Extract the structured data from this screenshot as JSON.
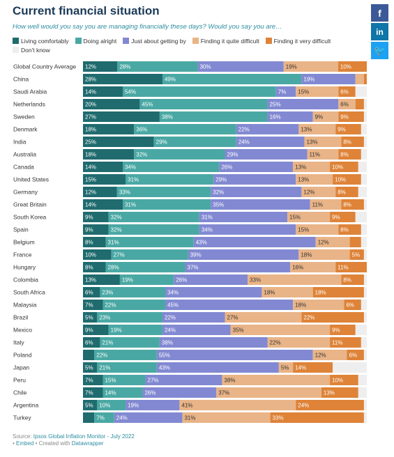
{
  "title": "Current financial situation",
  "subtitle": "How well would you say you are managing financially these days? Would you say you are…",
  "social": {
    "facebook": "f",
    "linkedin": "in",
    "twitter": "🐦"
  },
  "footer": {
    "source_prefix": "Source: ",
    "source_link": "Ipsos Global Inflation Monitor - July 2022",
    "bullet": "• ",
    "embed": "Embed",
    "created": " • Created with ",
    "tool": "Datawrapper"
  },
  "chart_data": {
    "type": "bar",
    "orientation": "horizontal-stacked-100",
    "legend_position": "top",
    "series": [
      {
        "name": "Living comfortably",
        "color": "#1f6b6e"
      },
      {
        "name": "Doing alright",
        "color": "#4aa8a4"
      },
      {
        "name": "Just about getting by",
        "color": "#8289d2"
      },
      {
        "name": "Finding it quite difficult",
        "color": "#e9b487"
      },
      {
        "name": "Finding it very difficult",
        "color": "#de8338"
      },
      {
        "name": "Don't know",
        "color": "#eeeeee"
      }
    ],
    "rows": [
      {
        "label": "Global Country Average",
        "values": [
          12,
          28,
          30,
          19,
          10,
          0
        ]
      },
      {
        "label": "China",
        "values": [
          28,
          49,
          19,
          3,
          1,
          0
        ]
      },
      {
        "label": "Saudi Arabia",
        "values": [
          14,
          54,
          7,
          15,
          6,
          4
        ]
      },
      {
        "label": "Netherlands",
        "values": [
          20,
          45,
          25,
          6,
          3,
          1
        ]
      },
      {
        "label": "Sweden",
        "values": [
          27,
          38,
          16,
          9,
          9,
          1
        ]
      },
      {
        "label": "Denmark",
        "values": [
          18,
          36,
          22,
          13,
          9,
          2
        ]
      },
      {
        "label": "India",
        "values": [
          25,
          29,
          24,
          13,
          8,
          1
        ]
      },
      {
        "label": "Australia",
        "values": [
          18,
          32,
          29,
          11,
          8,
          2
        ]
      },
      {
        "label": "Canada",
        "values": [
          14,
          34,
          26,
          13,
          10,
          3
        ]
      },
      {
        "label": "United States",
        "values": [
          15,
          31,
          29,
          13,
          10,
          2
        ]
      },
      {
        "label": "Germany",
        "values": [
          12,
          33,
          32,
          12,
          8,
          3
        ]
      },
      {
        "label": "Great Britain",
        "values": [
          14,
          31,
          35,
          11,
          8,
          1
        ]
      },
      {
        "label": "South Korea",
        "values": [
          9,
          32,
          31,
          15,
          9,
          4
        ]
      },
      {
        "label": "Spain",
        "values": [
          9,
          32,
          34,
          15,
          8,
          2
        ]
      },
      {
        "label": "Belgium",
        "values": [
          8,
          31,
          43,
          12,
          4,
          2
        ]
      },
      {
        "label": "France",
        "values": [
          10,
          27,
          39,
          18,
          5,
          1
        ]
      },
      {
        "label": "Hungary",
        "values": [
          8,
          28,
          37,
          16,
          11,
          0
        ]
      },
      {
        "label": "Colombia",
        "values": [
          13,
          19,
          26,
          33,
          8,
          1
        ]
      },
      {
        "label": "South Africa",
        "values": [
          6,
          23,
          34,
          18,
          18,
          1
        ]
      },
      {
        "label": "Malaysia",
        "values": [
          7,
          22,
          45,
          18,
          6,
          2
        ]
      },
      {
        "label": "Brazil",
        "values": [
          5,
          23,
          22,
          27,
          22,
          1
        ]
      },
      {
        "label": "Mexico",
        "values": [
          9,
          19,
          24,
          35,
          9,
          4
        ]
      },
      {
        "label": "Italy",
        "values": [
          6,
          21,
          38,
          22,
          11,
          2
        ]
      },
      {
        "label": "Poland",
        "values": [
          4,
          22,
          55,
          12,
          6,
          1
        ]
      },
      {
        "label": "Japan",
        "values": [
          5,
          21,
          43,
          5,
          14,
          12
        ]
      },
      {
        "label": "Peru",
        "values": [
          7,
          15,
          27,
          38,
          10,
          3
        ]
      },
      {
        "label": "Chile",
        "values": [
          7,
          14,
          26,
          37,
          13,
          3
        ]
      },
      {
        "label": "Argentina",
        "values": [
          5,
          10,
          19,
          41,
          24,
          1
        ]
      },
      {
        "label": "Turkey",
        "values": [
          4,
          7,
          24,
          31,
          33,
          1
        ]
      }
    ]
  }
}
